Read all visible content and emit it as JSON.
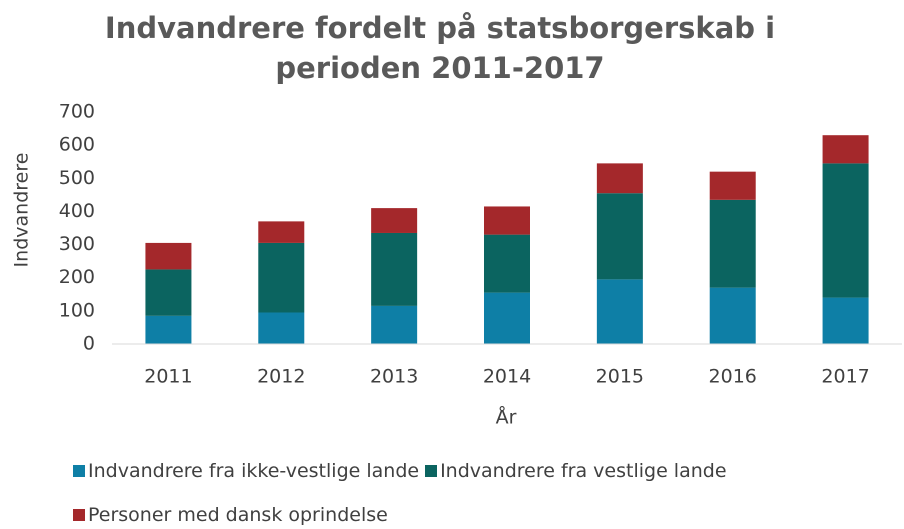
{
  "chart_data": {
    "type": "stacked_bar",
    "title": "Indvandrere fordelt på statsborgerskab i perioden 2011-2017",
    "x_label": "År",
    "y_label": "Indvandrere",
    "categories": [
      "2011",
      "2012",
      "2013",
      "2014",
      "2015",
      "2016",
      "2017"
    ],
    "series": [
      {
        "name": "Indvandrere fra ikke-vestlige lande",
        "color": "#0e7fa6",
        "values": [
          85,
          95,
          115,
          155,
          195,
          170,
          140
        ]
      },
      {
        "name": "Indvandrere fra vestlige lande",
        "color": "#0b6460",
        "values": [
          140,
          210,
          220,
          175,
          260,
          265,
          405
        ]
      },
      {
        "name": "Personer med dansk oprindelse",
        "color": "#a4282b",
        "values": [
          80,
          65,
          75,
          85,
          90,
          85,
          85
        ]
      }
    ],
    "ylim": [
      0,
      700
    ],
    "yticks": [
      0,
      100,
      200,
      300,
      400,
      500,
      600,
      700
    ],
    "grid": false,
    "legend": "bottom"
  }
}
